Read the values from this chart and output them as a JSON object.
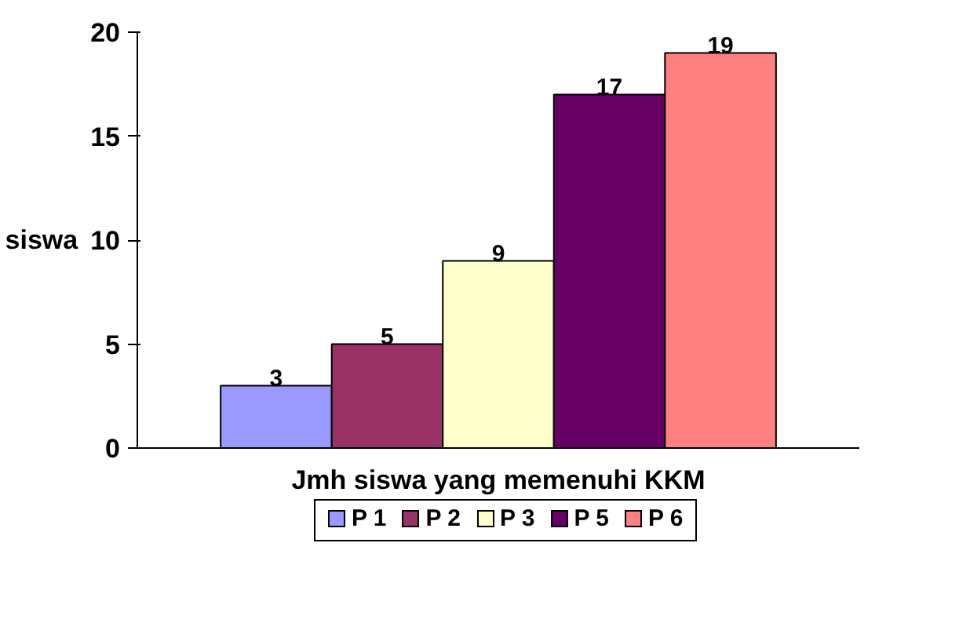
{
  "chart_data": {
    "type": "bar",
    "xlabel": "Jmh siswa yang memenuhi KKM",
    "ylabel": "siswa",
    "categories": [
      null
    ],
    "series": [
      {
        "name": "P 1",
        "color": "#9999ff",
        "values": [
          3
        ]
      },
      {
        "name": "P 2",
        "color": "#993366",
        "values": [
          5
        ]
      },
      {
        "name": "P 3",
        "color": "#ffffcc",
        "values": [
          9
        ]
      },
      {
        "name": "P 5",
        "color": "#660066",
        "values": [
          17
        ]
      },
      {
        "name": "P 6",
        "color": "#ff8080",
        "values": [
          19
        ]
      }
    ],
    "ylim": [
      0,
      20
    ],
    "yticks": [
      0,
      5,
      10,
      15,
      20
    ],
    "data_labels": true,
    "legend": "bottom",
    "grid": false
  }
}
